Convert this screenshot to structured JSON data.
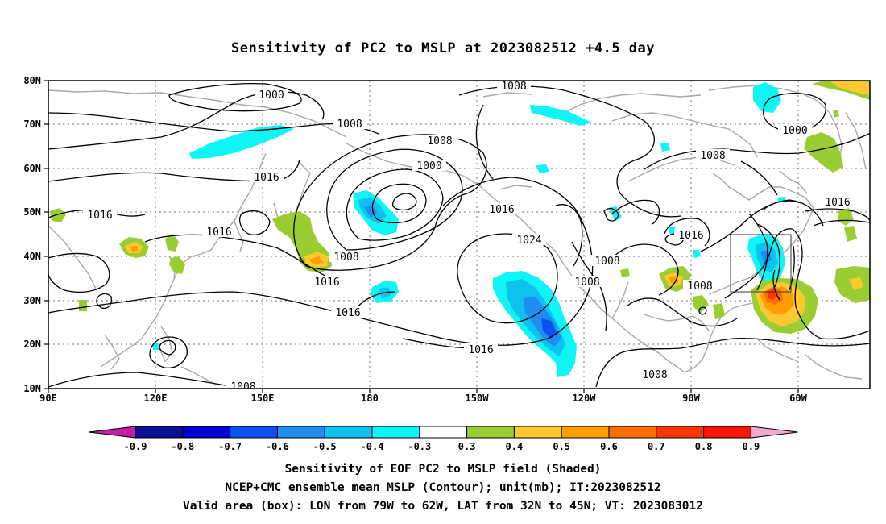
{
  "title": "Sensitivity of PC2 to MSLP at 2023082512 +4.5 day",
  "map": {
    "lat_labels": [
      "80N",
      "70N",
      "60N",
      "50N",
      "40N",
      "30N",
      "20N",
      "10N"
    ],
    "lon_labels": [
      "90E",
      "120E",
      "150E",
      "180",
      "150W",
      "120W",
      "90W",
      "60W"
    ],
    "contour_labels": [
      "1000",
      "1008",
      "1008",
      "1008",
      "1000",
      "1000",
      "1008",
      "1016",
      "1016",
      "1016",
      "1016",
      "1016",
      "1024",
      "1016",
      "1016",
      "1016",
      "1016",
      "1008",
      "1008",
      "1008",
      "1008",
      "1008",
      "1008"
    ],
    "valid_box": {
      "lon_west": "79W",
      "lon_east": "62W",
      "lat_south": "32N",
      "lat_north": "45N"
    }
  },
  "colorbar": {
    "labels": [
      "-0.9",
      "-0.8",
      "-0.7",
      "-0.6",
      "-0.5",
      "-0.4",
      "-0.3",
      "0.3",
      "0.4",
      "0.5",
      "0.6",
      "0.7",
      "0.8",
      "0.9"
    ],
    "colors": [
      "#c21fa8",
      "#0d0d98",
      "#0000d4",
      "#0b4ff5",
      "#1f8cf0",
      "#0ec2f0",
      "#0ff5f5",
      "#ffffff",
      "#9acd32",
      "#ffc830",
      "#ff9e00",
      "#ff6e00",
      "#ff3600",
      "#ff1600",
      "#f7a8cd"
    ]
  },
  "captions": {
    "line1": "Sensitivity of EOF PC2 to MSLP field (Shaded)",
    "line2": "NCEP+CMC ensemble mean MSLP (Contour); unit(mb); IT:2023082512",
    "line3": "Valid area (box): LON from 79W to 62W, LAT from 32N to 45N; VT: 2023083012"
  }
}
